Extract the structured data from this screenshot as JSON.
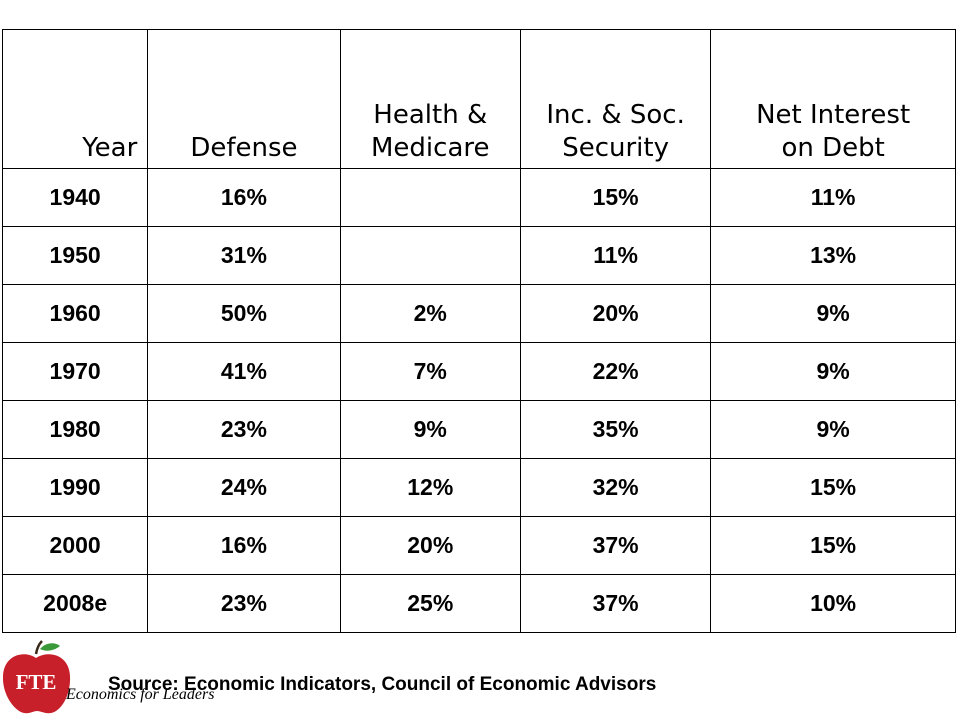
{
  "table": {
    "headers": [
      {
        "line1": "Year",
        "line2": ""
      },
      {
        "line1": "Defense",
        "line2": ""
      },
      {
        "line1": "Health &",
        "line2": "Medicare"
      },
      {
        "line1": "Inc. & Soc.",
        "line2": "Security"
      },
      {
        "line1": "Net Interest",
        "line2": "on Debt"
      }
    ],
    "rows": [
      [
        "1940",
        "16%",
        "",
        "15%",
        "11%"
      ],
      [
        "1950",
        "31%",
        "",
        "11%",
        "13%"
      ],
      [
        "1960",
        "50%",
        "2%",
        "20%",
        "9%"
      ],
      [
        "1970",
        "41%",
        "7%",
        "22%",
        "9%"
      ],
      [
        "1980",
        "23%",
        "9%",
        "35%",
        "9%"
      ],
      [
        "1990",
        "24%",
        "12%",
        "32%",
        "15%"
      ],
      [
        "2000",
        "16%",
        "20%",
        "37%",
        "15%"
      ],
      [
        "2008e",
        "23%",
        "25%",
        "37%",
        "10%"
      ]
    ]
  },
  "logo": {
    "text": "FTE",
    "tagline": "Economics for Leaders",
    "color": "#c8202a"
  },
  "footer": {
    "source": "Source:  Economic Indicators, Council of Economic Advisors"
  }
}
